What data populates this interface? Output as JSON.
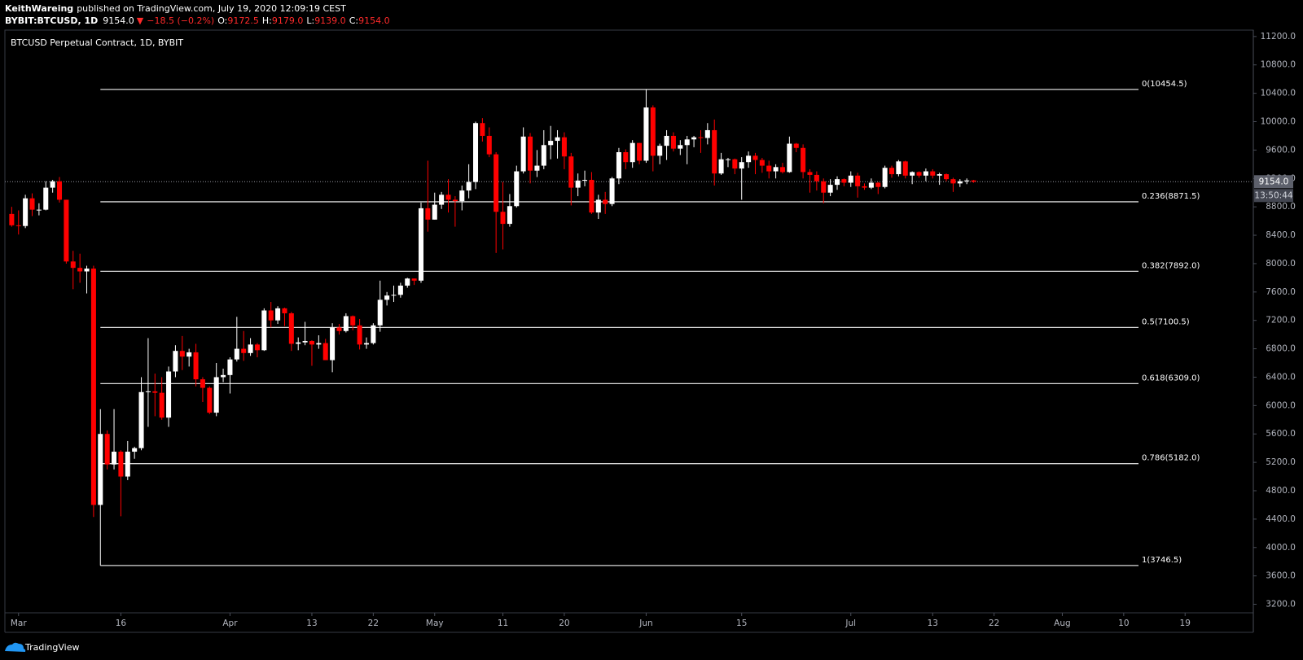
{
  "header": {
    "author": "KeithWareing",
    "published": "published on TradingView.com, July 19, 2020 12:09:19 CEST",
    "symbol": "BYBIT:BTCUSD, 1D",
    "last": "9154.0",
    "arrow": "▼",
    "change": "−18.5 (−0.2%)",
    "ohlc": [
      {
        "label": "O:",
        "value": "9172.5"
      },
      {
        "label": "H:",
        "value": "9179.0"
      },
      {
        "label": "L:",
        "value": "9139.0"
      },
      {
        "label": "C:",
        "value": "9154.0"
      }
    ]
  },
  "chart_data": {
    "type": "candlestick",
    "title": "BTCUSD Perpetual Contract, 1D, BYBIT",
    "up_color": "#ffffff",
    "down_color": "#ff0000",
    "fib_color": "#d9d9d9",
    "x": [
      "2020-02-29",
      "2020-03-01",
      "2020-03-02",
      "2020-03-03",
      "2020-03-04",
      "2020-03-05",
      "2020-03-06",
      "2020-03-07",
      "2020-03-08",
      "2020-03-09",
      "2020-03-10",
      "2020-03-11",
      "2020-03-12",
      "2020-03-13",
      "2020-03-14",
      "2020-03-15",
      "2020-03-16",
      "2020-03-17",
      "2020-03-18",
      "2020-03-19",
      "2020-03-20",
      "2020-03-21",
      "2020-03-22",
      "2020-03-23",
      "2020-03-24",
      "2020-03-25",
      "2020-03-26",
      "2020-03-27",
      "2020-03-28",
      "2020-03-29",
      "2020-03-30",
      "2020-03-31",
      "2020-04-01",
      "2020-04-02",
      "2020-04-03",
      "2020-04-04",
      "2020-04-05",
      "2020-04-06",
      "2020-04-07",
      "2020-04-08",
      "2020-04-09",
      "2020-04-10",
      "2020-04-11",
      "2020-04-12",
      "2020-04-13",
      "2020-04-14",
      "2020-04-15",
      "2020-04-16",
      "2020-04-17",
      "2020-04-18",
      "2020-04-19",
      "2020-04-20",
      "2020-04-21",
      "2020-04-22",
      "2020-04-23",
      "2020-04-24",
      "2020-04-25",
      "2020-04-26",
      "2020-04-27",
      "2020-04-28",
      "2020-04-29",
      "2020-04-30",
      "2020-05-01",
      "2020-05-02",
      "2020-05-03",
      "2020-05-04",
      "2020-05-05",
      "2020-05-06",
      "2020-05-07",
      "2020-05-08",
      "2020-05-09",
      "2020-05-10",
      "2020-05-11",
      "2020-05-12",
      "2020-05-13",
      "2020-05-14",
      "2020-05-15",
      "2020-05-16",
      "2020-05-17",
      "2020-05-18",
      "2020-05-19",
      "2020-05-20",
      "2020-05-21",
      "2020-05-22",
      "2020-05-23",
      "2020-05-24",
      "2020-05-25",
      "2020-05-26",
      "2020-05-27",
      "2020-05-28",
      "2020-05-29",
      "2020-05-30",
      "2020-05-31",
      "2020-06-01",
      "2020-06-02",
      "2020-06-03",
      "2020-06-04",
      "2020-06-05",
      "2020-06-06",
      "2020-06-07",
      "2020-06-08",
      "2020-06-09",
      "2020-06-10",
      "2020-06-11",
      "2020-06-12",
      "2020-06-13",
      "2020-06-14",
      "2020-06-15",
      "2020-06-16",
      "2020-06-17",
      "2020-06-18",
      "2020-06-19",
      "2020-06-20",
      "2020-06-21",
      "2020-06-22",
      "2020-06-23",
      "2020-06-24",
      "2020-06-25",
      "2020-06-26",
      "2020-06-27",
      "2020-06-28",
      "2020-06-29",
      "2020-06-30",
      "2020-07-01",
      "2020-07-02",
      "2020-07-03",
      "2020-07-04",
      "2020-07-05",
      "2020-07-06",
      "2020-07-07",
      "2020-07-08",
      "2020-07-09",
      "2020-07-10",
      "2020-07-11",
      "2020-07-12",
      "2020-07-13",
      "2020-07-14",
      "2020-07-15",
      "2020-07-16",
      "2020-07-17",
      "2020-07-18",
      "2020-07-19"
    ],
    "open": [
      8700,
      8540,
      8530,
      8920,
      8760,
      8760,
      9070,
      9160,
      8900,
      8030,
      7940,
      7890,
      7930,
      4600,
      5600,
      5170,
      5350,
      5000,
      5350,
      5400,
      6190,
      6200,
      6180,
      5830,
      6480,
      6770,
      6690,
      6750,
      6370,
      6250,
      5900,
      6400,
      6430,
      6650,
      6800,
      6740,
      6860,
      6780,
      7340,
      7200,
      7370,
      7300,
      6870,
      6890,
      6910,
      6860,
      6880,
      6640,
      7100,
      7050,
      7260,
      7130,
      6860,
      6880,
      7130,
      7490,
      7550,
      7560,
      7690,
      7790,
      7760,
      8780,
      8620,
      8830,
      8970,
      8900,
      8880,
      9030,
      9150,
      9980,
      9800,
      9540,
      8730,
      8560,
      8810,
      9300,
      9790,
      9310,
      9380,
      9670,
      9730,
      9780,
      9510,
      9070,
      9170,
      9180,
      8720,
      8900,
      8840,
      9200,
      9570,
      9430,
      9700,
      9450,
      10200,
      9520,
      9660,
      9800,
      9620,
      9670,
      9750,
      9780,
      9770,
      9880,
      9270,
      9470,
      9470,
      9340,
      9430,
      9520,
      9460,
      9380,
      9300,
      9360,
      9290,
      9690,
      9630,
      9290,
      9250,
      9160,
      9000,
      9110,
      9190,
      9140,
      9240,
      9090,
      9070,
      9140,
      9080,
      9350,
      9260,
      9440,
      9240,
      9290,
      9240,
      9300,
      9240,
      9260,
      9190,
      9130,
      9160,
      9172.5
    ],
    "high": [
      8800,
      8750,
      8970,
      8990,
      8850,
      9160,
      9180,
      9220,
      8900,
      8180,
      8140,
      7970,
      7970,
      5950,
      5650,
      5950,
      5370,
      5500,
      5420,
      6400,
      6950,
      6450,
      6400,
      6550,
      6850,
      6980,
      6800,
      6870,
      6400,
      6270,
      6600,
      6520,
      6680,
      7250,
      7050,
      6950,
      6880,
      7370,
      7460,
      7400,
      7380,
      7320,
      6960,
      7180,
      6920,
      6990,
      6940,
      7160,
      7150,
      7300,
      7270,
      7220,
      6960,
      7160,
      7760,
      7600,
      7690,
      7730,
      7800,
      7790,
      8860,
      9450,
      9000,
      9010,
      9190,
      8950,
      9100,
      9400,
      10000,
      10050,
      9920,
      9570,
      9150,
      8980,
      9380,
      9920,
      9840,
      9600,
      9880,
      9940,
      9880,
      9850,
      9560,
      9270,
      9310,
      9290,
      8970,
      9010,
      9220,
      9630,
      9610,
      9740,
      9700,
      10454.5,
      10230,
      9690,
      9880,
      9850,
      9740,
      9800,
      9800,
      9880,
      9980,
      10030,
      9560,
      9490,
      9480,
      9500,
      9580,
      9560,
      9490,
      9450,
      9400,
      9420,
      9790,
      9700,
      9680,
      9330,
      9300,
      9200,
      9190,
      9230,
      9200,
      9300,
      9280,
      9130,
      9200,
      9150,
      9380,
      9380,
      9460,
      9450,
      9300,
      9300,
      9340,
      9330,
      9280,
      9270,
      9210,
      9190,
      9200,
      9179
    ],
    "low": [
      8520,
      8410,
      8500,
      8670,
      8680,
      8750,
      9000,
      8860,
      8000,
      7640,
      7730,
      7580,
      4430,
      3746.5,
      5100,
      5100,
      4440,
      4950,
      5250,
      5370,
      5700,
      5850,
      5800,
      5700,
      6400,
      6500,
      6550,
      6270,
      6050,
      5880,
      5850,
      6330,
      6170,
      6620,
      6630,
      6700,
      6680,
      6770,
      7100,
      7150,
      7120,
      6770,
      6780,
      6850,
      6560,
      6800,
      6640,
      6470,
      7000,
      7030,
      7060,
      6790,
      6800,
      6860,
      7040,
      7410,
      7460,
      7520,
      7660,
      7700,
      7730,
      8450,
      8620,
      8770,
      8720,
      8520,
      8750,
      8920,
      9050,
      9720,
      9500,
      8150,
      8200,
      8520,
      8790,
      9270,
      9130,
      9220,
      9330,
      9470,
      9480,
      9330,
      8820,
      8950,
      9090,
      8700,
      8630,
      8700,
      8810,
      9120,
      9330,
      9350,
      9400,
      9420,
      9300,
      9400,
      9460,
      9580,
      9530,
      9400,
      9640,
      9560,
      9680,
      9100,
      9250,
      9360,
      9260,
      8900,
      9350,
      9260,
      9280,
      9200,
      9200,
      9270,
      9280,
      9570,
      9200,
      9000,
      9030,
      8850,
      8950,
      9040,
      9090,
      9080,
      8930,
      9040,
      9050,
      8980,
      9060,
      9210,
      9230,
      9200,
      9120,
      9210,
      9160,
      9200,
      9110,
      9160,
      9010,
      9080,
      9120,
      9139
    ],
    "close": [
      8540,
      8530,
      8920,
      8760,
      8760,
      9070,
      9160,
      8900,
      8030,
      7940,
      7890,
      7930,
      4600,
      5600,
      5170,
      5350,
      5000,
      5350,
      5400,
      6190,
      6200,
      6180,
      5830,
      6480,
      6770,
      6690,
      6750,
      6370,
      6250,
      5900,
      6400,
      6430,
      6650,
      6800,
      6740,
      6860,
      6780,
      7340,
      7200,
      7370,
      7300,
      6870,
      6890,
      6910,
      6860,
      6880,
      6640,
      7100,
      7050,
      7260,
      7130,
      6860,
      6880,
      7130,
      7490,
      7550,
      7560,
      7690,
      7790,
      7760,
      8780,
      8620,
      8830,
      8970,
      8900,
      8880,
      9030,
      9150,
      9980,
      9800,
      9540,
      8730,
      8560,
      8810,
      9300,
      9790,
      9310,
      9380,
      9670,
      9730,
      9780,
      9510,
      9070,
      9170,
      9180,
      8720,
      8900,
      8840,
      9200,
      9570,
      9430,
      9700,
      9450,
      10200,
      9520,
      9660,
      9800,
      9620,
      9670,
      9750,
      9780,
      9770,
      9880,
      9270,
      9470,
      9470,
      9340,
      9430,
      9520,
      9460,
      9380,
      9300,
      9360,
      9290,
      9690,
      9630,
      9290,
      9250,
      9160,
      9000,
      9110,
      9190,
      9140,
      9240,
      9090,
      9070,
      9140,
      9080,
      9350,
      9260,
      9440,
      9240,
      9290,
      9240,
      9300,
      9240,
      9260,
      9190,
      9130,
      9160,
      9172.5,
      9154
    ],
    "xlim": [
      "2020-02-28",
      "2020-08-29"
    ],
    "xticks": [
      {
        "value": "2020-03-01",
        "label": "Mar"
      },
      {
        "value": "2020-03-16",
        "label": "16"
      },
      {
        "value": "2020-04-01",
        "label": "Apr"
      },
      {
        "value": "2020-04-13",
        "label": "13"
      },
      {
        "value": "2020-04-22",
        "label": "22"
      },
      {
        "value": "2020-05-01",
        "label": "May"
      },
      {
        "value": "2020-05-11",
        "label": "11"
      },
      {
        "value": "2020-05-20",
        "label": "20"
      },
      {
        "value": "2020-06-01",
        "label": "Jun"
      },
      {
        "value": "2020-06-15",
        "label": "15"
      },
      {
        "value": "2020-07-01",
        "label": "Jul"
      },
      {
        "value": "2020-07-13",
        "label": "13"
      },
      {
        "value": "2020-07-22",
        "label": "22"
      },
      {
        "value": "2020-08-01",
        "label": "Aug"
      },
      {
        "value": "2020-08-10",
        "label": "10"
      },
      {
        "value": "2020-08-19",
        "label": "19"
      }
    ],
    "ylim": [
      3080,
      11290
    ],
    "yticks": [
      {
        "value": 3200,
        "label": "3200.0"
      },
      {
        "value": 3600,
        "label": "3600.0"
      },
      {
        "value": 4000,
        "label": "4000.0"
      },
      {
        "value": 4400,
        "label": "4400.0"
      },
      {
        "value": 4800,
        "label": "4800.0"
      },
      {
        "value": 5200,
        "label": "5200.0"
      },
      {
        "value": 5600,
        "label": "5600.0"
      },
      {
        "value": 6000,
        "label": "6000.0"
      },
      {
        "value": 6400,
        "label": "6400.0"
      },
      {
        "value": 6800,
        "label": "6800.0"
      },
      {
        "value": 7200,
        "label": "7200.0"
      },
      {
        "value": 7600,
        "label": "7600.0"
      },
      {
        "value": 8000,
        "label": "8000.0"
      },
      {
        "value": 8400,
        "label": "8400.0"
      },
      {
        "value": 8800,
        "label": "8800.0"
      },
      {
        "value": 9200,
        "label": "9200.0"
      },
      {
        "value": 9600,
        "label": "9600.0"
      },
      {
        "value": 10000,
        "label": "10000.0"
      },
      {
        "value": 10400,
        "label": "10400.0"
      },
      {
        "value": 10800,
        "label": "10800.0"
      },
      {
        "value": 11200,
        "label": "11200.0"
      }
    ],
    "fib": [
      {
        "label": "0(10454.5)",
        "price": 10454.5
      },
      {
        "label": "0.236(8871.5)",
        "price": 8871.5
      },
      {
        "label": "0.382(7892.0)",
        "price": 7892
      },
      {
        "label": "0.5(7100.5)",
        "price": 7100.5
      },
      {
        "label": "0.618(6309.0)",
        "price": 6309
      },
      {
        "label": "0.786(5182.0)",
        "price": 5182
      },
      {
        "label": "1(3746.5)",
        "price": 3746.5
      }
    ],
    "current_price": {
      "value": 9154,
      "label": "9154.0"
    },
    "countdown": "13:50:44"
  },
  "footer": {
    "brand": "TradingView"
  }
}
